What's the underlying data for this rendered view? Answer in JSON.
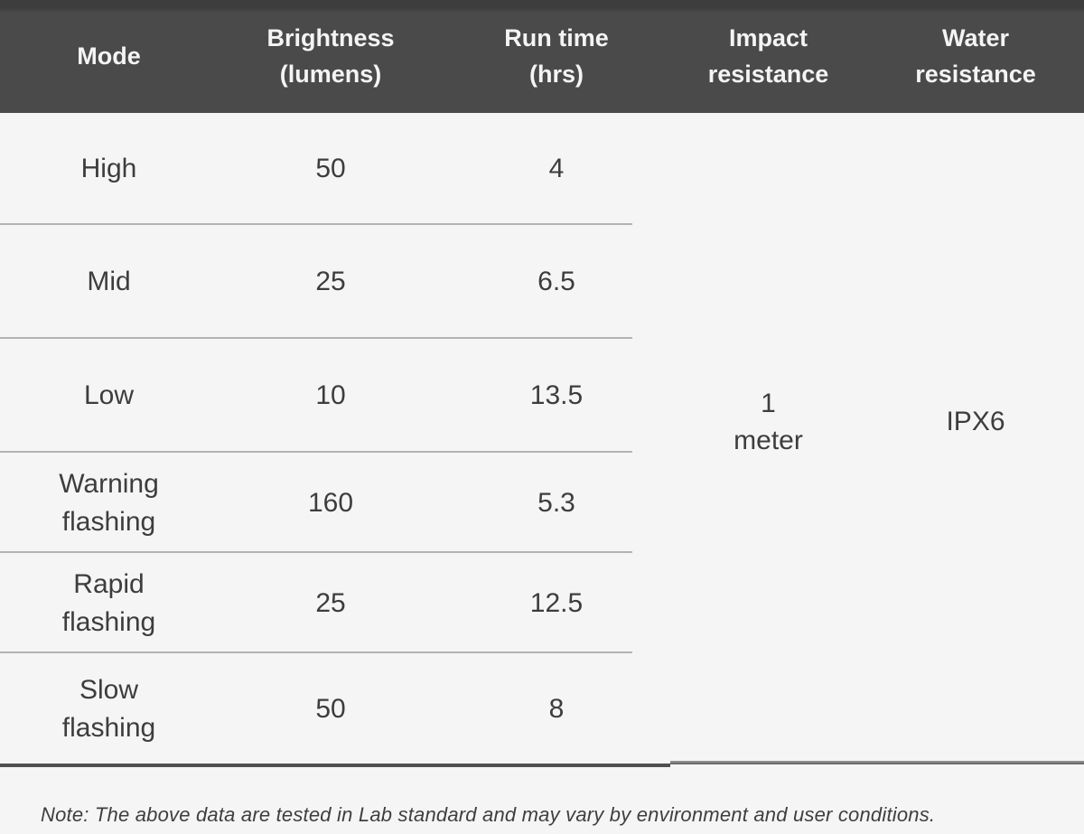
{
  "chart_data": {
    "type": "table",
    "columns": [
      "Mode",
      "Brightness (lumens)",
      "Run time (hrs)",
      "Impact resistance",
      "Water resistance"
    ],
    "rows": [
      {
        "mode": "High",
        "brightness_lumens": 50,
        "run_time_hrs": 4
      },
      {
        "mode": "Mid",
        "brightness_lumens": 25,
        "run_time_hrs": 6.5
      },
      {
        "mode": "Low",
        "brightness_lumens": 10,
        "run_time_hrs": 13.5
      },
      {
        "mode": "Warning flashing",
        "brightness_lumens": 160,
        "run_time_hrs": 5.3
      },
      {
        "mode": "Rapid flashing",
        "brightness_lumens": 25,
        "run_time_hrs": 12.5
      },
      {
        "mode": "Slow flashing",
        "brightness_lumens": 50,
        "run_time_hrs": 8
      }
    ],
    "merged_cells": {
      "impact_resistance": "1 meter",
      "water_resistance": "IPX6"
    },
    "note": "Note: The above data are tested in Lab standard and may vary by environment and user conditions."
  },
  "table": {
    "header": {
      "mode": "Mode",
      "brightness": "Brightness\n(lumens)",
      "run_time": "Run time\n(hrs)",
      "impact": "Impact\nresistance",
      "water": "Water\nresistance"
    },
    "rows": [
      {
        "mode": "High",
        "brightness": "50",
        "run_time": "4"
      },
      {
        "mode": "Mid",
        "brightness": "25",
        "run_time": "6.5"
      },
      {
        "mode": "Low",
        "brightness": "10",
        "run_time": "13.5"
      },
      {
        "mode": "Warning\nflashing",
        "brightness": "160",
        "run_time": "5.3"
      },
      {
        "mode": "Rapid\nflashing",
        "brightness": "25",
        "run_time": "12.5"
      },
      {
        "mode": "Slow\nflashing",
        "brightness": "50",
        "run_time": "8"
      }
    ],
    "merged": {
      "impact_resistance": "1\nmeter",
      "water_resistance": "IPX6"
    }
  },
  "note": "Note: The above data are tested in Lab standard and may vary by environment and user conditions.",
  "colors": {
    "header_bg": "#4a4a4a",
    "header_text": "#f4f4f4",
    "body_bg": "#f5f5f6",
    "body_text": "#3d3d3d",
    "row_separator": "#b3b3b3",
    "bottom_rule": "#4f4f4f"
  }
}
